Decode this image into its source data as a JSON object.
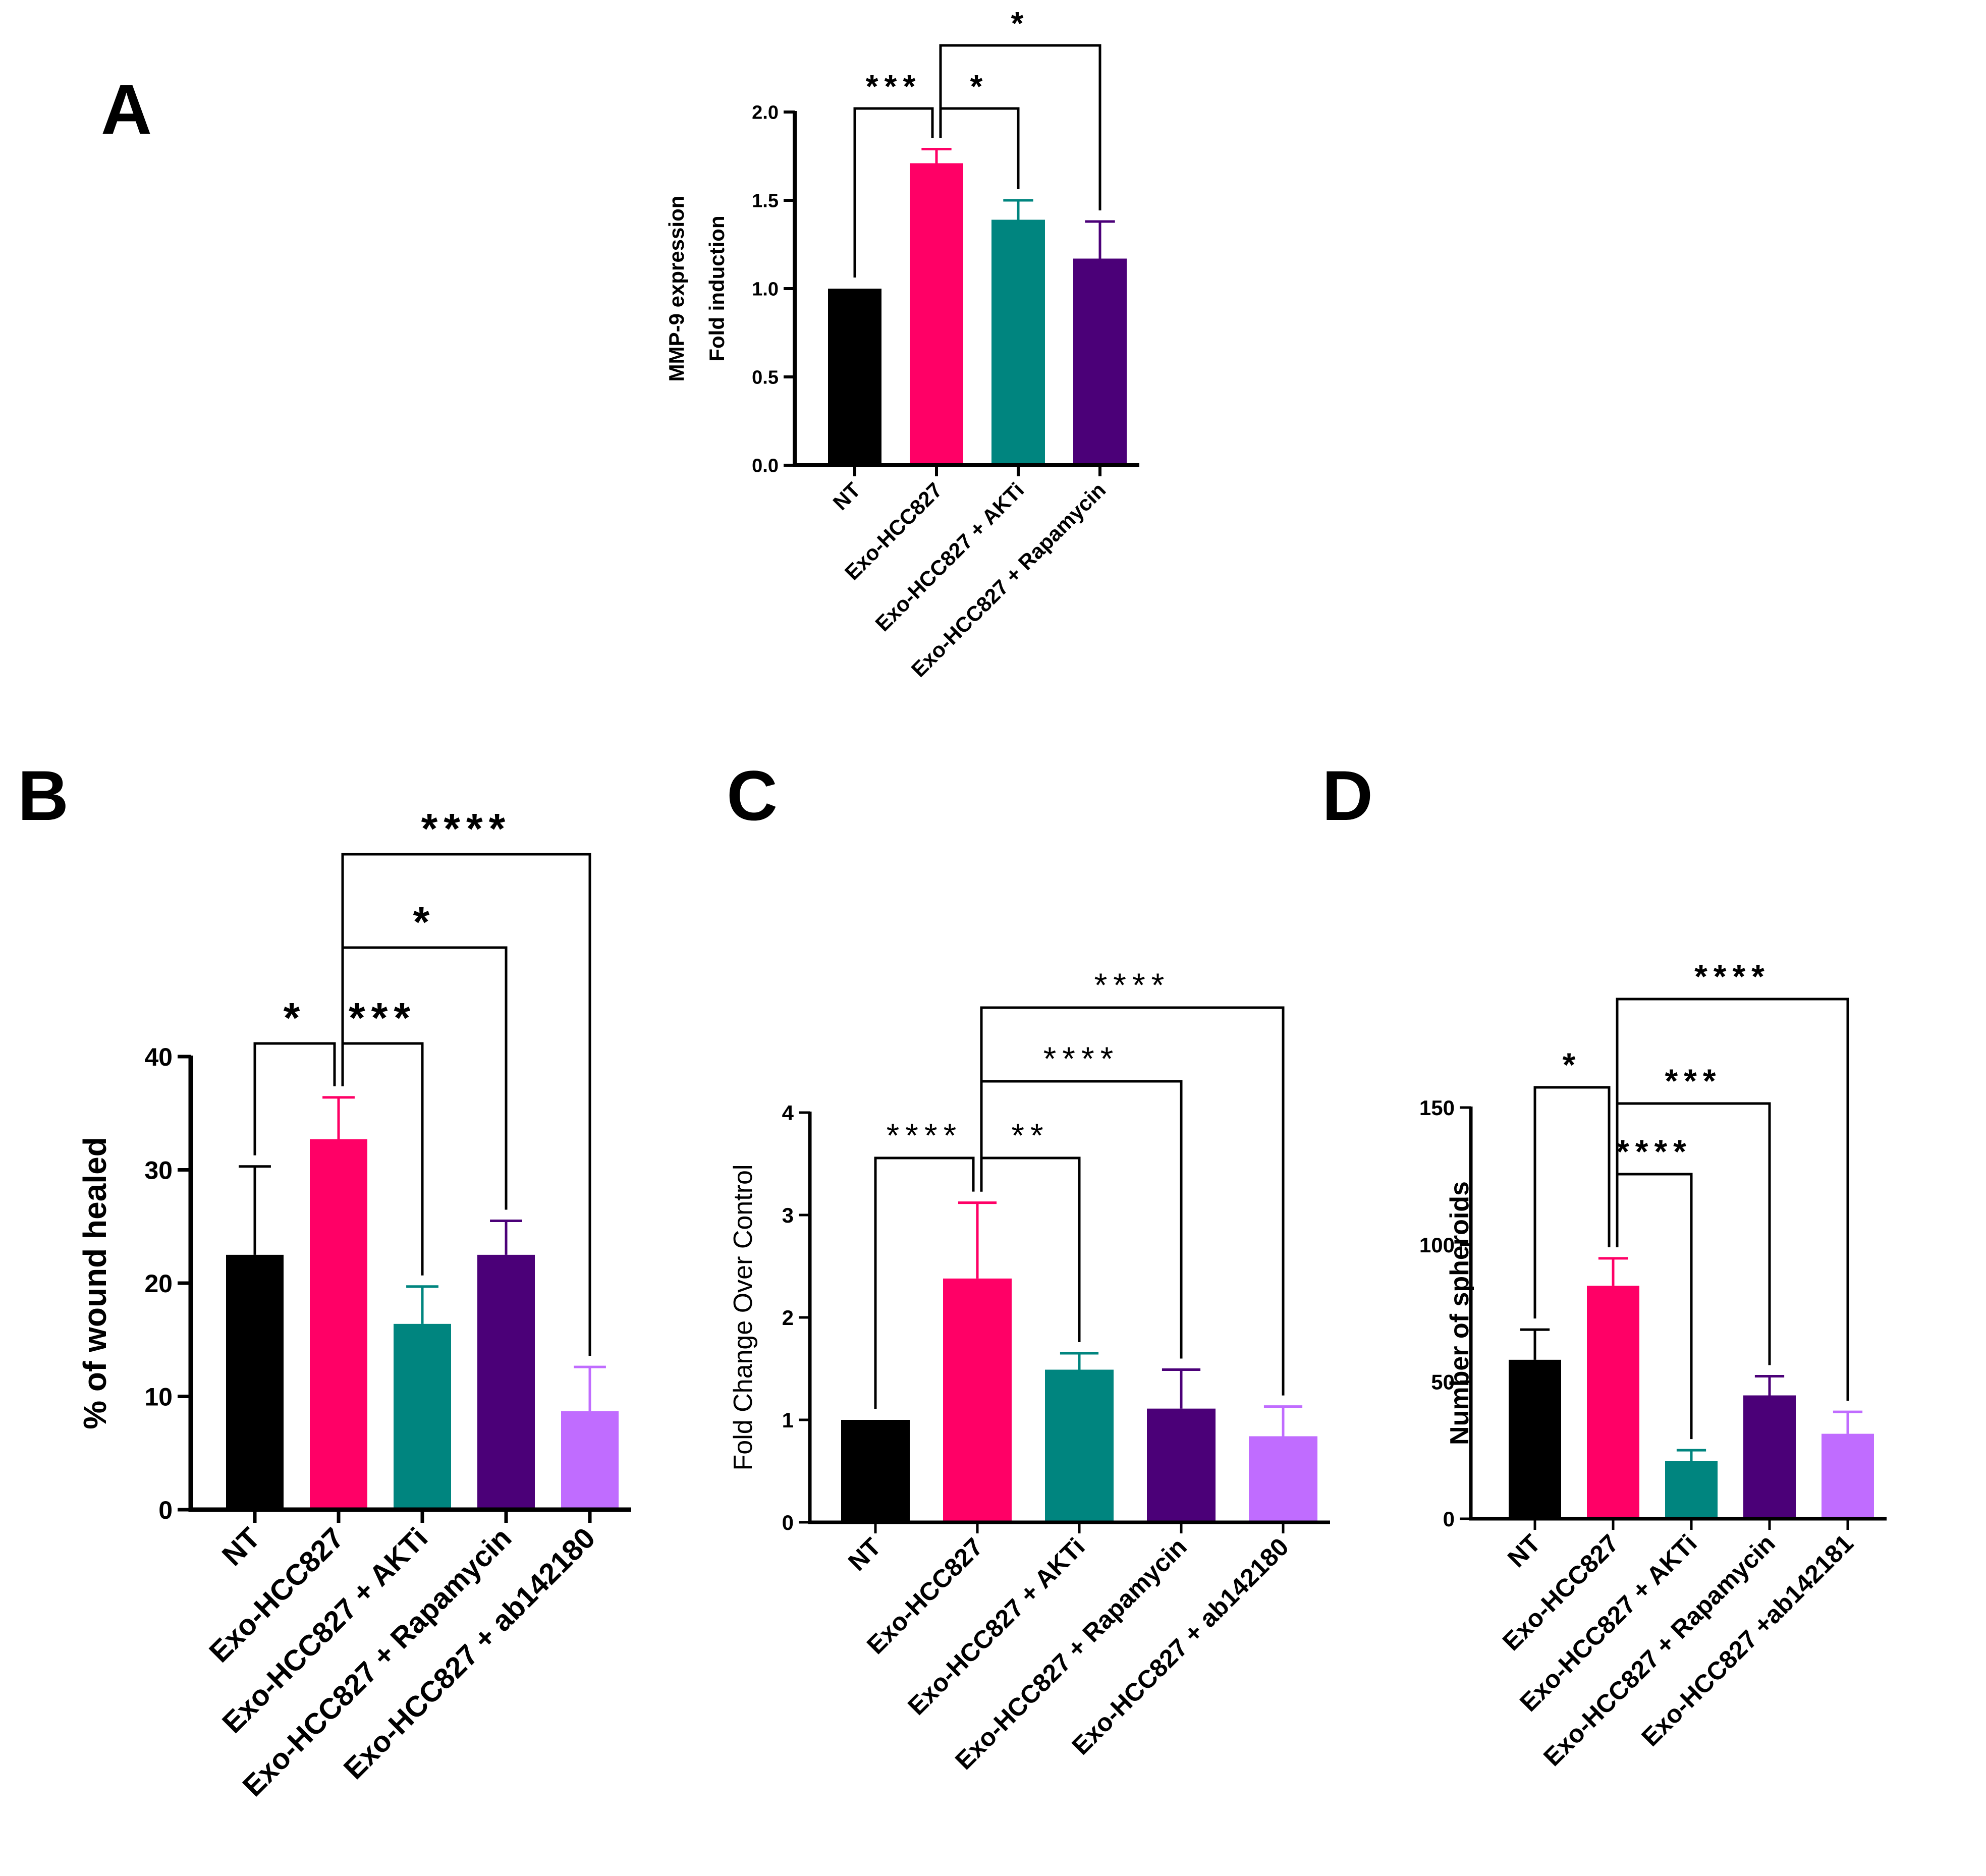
{
  "figure": {
    "panel_letters": [
      "A",
      "B",
      "C",
      "D"
    ]
  },
  "chart_data": [
    {
      "panel": "A",
      "type": "bar",
      "title": "",
      "xlabel": "",
      "ylabel_lines": [
        "MMP-9 expression",
        "Fold induction"
      ],
      "categories": [
        "NT",
        "Exo-HCC827",
        "Exo-HCC827 + AKTi",
        "Exo-HCC827 + Rapamycin"
      ],
      "values": [
        1.0,
        1.71,
        1.39,
        1.17
      ],
      "errors": [
        0,
        0.08,
        0.11,
        0.21
      ],
      "colors": [
        "#000000",
        "#ff0066",
        "#00857f",
        "#4b0078"
      ],
      "yticks": [
        0.0,
        0.5,
        1.0,
        1.5,
        2.0
      ],
      "ytick_labels": [
        "0.0",
        "0.5",
        "1.0",
        "1.5",
        "2.0"
      ],
      "ylim": [
        0,
        2.0
      ],
      "significance": [
        {
          "from": 0,
          "to": 1,
          "label": "***"
        },
        {
          "from": 1,
          "to": 2,
          "label": "*"
        },
        {
          "from": 1,
          "to": 3,
          "label": "*"
        }
      ]
    },
    {
      "panel": "B",
      "type": "bar",
      "title": "",
      "xlabel": "",
      "ylabel_lines": [
        "% of wound healed"
      ],
      "categories": [
        "NT",
        "Exo-HCC827",
        "Exo-HCC827 + AKTi",
        "Exo-HCC827 + Rapamycin",
        "Exo-HCC827 + ab142180"
      ],
      "values": [
        22.5,
        32.7,
        16.4,
        22.5,
        8.7
      ],
      "errors": [
        7.8,
        3.7,
        3.3,
        3.0,
        3.9
      ],
      "colors": [
        "#000000",
        "#ff0066",
        "#00857f",
        "#4b0078",
        "#c06cff"
      ],
      "yticks": [
        0,
        10,
        20,
        30,
        40
      ],
      "ytick_labels": [
        "0",
        "10",
        "20",
        "30",
        "40"
      ],
      "ylim": [
        0,
        40
      ],
      "significance": [
        {
          "from": 0,
          "to": 1,
          "label": "*"
        },
        {
          "from": 1,
          "to": 2,
          "label": "***"
        },
        {
          "from": 1,
          "to": 3,
          "label": "*"
        },
        {
          "from": 1,
          "to": 4,
          "label": "****"
        }
      ]
    },
    {
      "panel": "C",
      "type": "bar",
      "title": "",
      "xlabel": "",
      "ylabel_lines": [
        "Fold Change Over Control"
      ],
      "categories": [
        "NT",
        "Exo-HCC827",
        "Exo-HCC827 + AKTi",
        "Exo-HCC827 + Rapamycin",
        "Exo-HCC827 + ab142180"
      ],
      "values": [
        1.0,
        2.38,
        1.49,
        1.11,
        0.84
      ],
      "errors": [
        0,
        0.74,
        0.16,
        0.38,
        0.29
      ],
      "colors": [
        "#000000",
        "#ff0066",
        "#00857f",
        "#4b0078",
        "#c06cff"
      ],
      "yticks": [
        0,
        1,
        2,
        3,
        4
      ],
      "ytick_labels": [
        "0",
        "1",
        "2",
        "3",
        "4"
      ],
      "ylim": [
        0,
        4
      ],
      "significance": [
        {
          "from": 0,
          "to": 1,
          "label": "****"
        },
        {
          "from": 1,
          "to": 2,
          "label": "**"
        },
        {
          "from": 1,
          "to": 3,
          "label": "****"
        },
        {
          "from": 1,
          "to": 4,
          "label": "****"
        }
      ]
    },
    {
      "panel": "D",
      "type": "bar",
      "title": "",
      "xlabel": "",
      "ylabel_lines": [
        "Number of spheroids"
      ],
      "categories": [
        "NT",
        "Exo-HCC827",
        "Exo-HCC827 + AKTi",
        "Exo-HCC827 + Rapamycin",
        "Exo-HCC827 +ab142181"
      ],
      "values": [
        58,
        85,
        21,
        45,
        31
      ],
      "errors": [
        11,
        10,
        4,
        7,
        8
      ],
      "colors": [
        "#000000",
        "#ff0066",
        "#00857f",
        "#4b0078",
        "#c06cff"
      ],
      "yticks": [
        0,
        50,
        100,
        150
      ],
      "ytick_labels": [
        "0",
        "50",
        "100",
        "150"
      ],
      "ylim": [
        0,
        150
      ],
      "significance": [
        {
          "from": 0,
          "to": 1,
          "label": "*"
        },
        {
          "from": 1,
          "to": 2,
          "label": "****"
        },
        {
          "from": 1,
          "to": 3,
          "label": "***"
        },
        {
          "from": 1,
          "to": 4,
          "label": "****"
        }
      ]
    }
  ]
}
